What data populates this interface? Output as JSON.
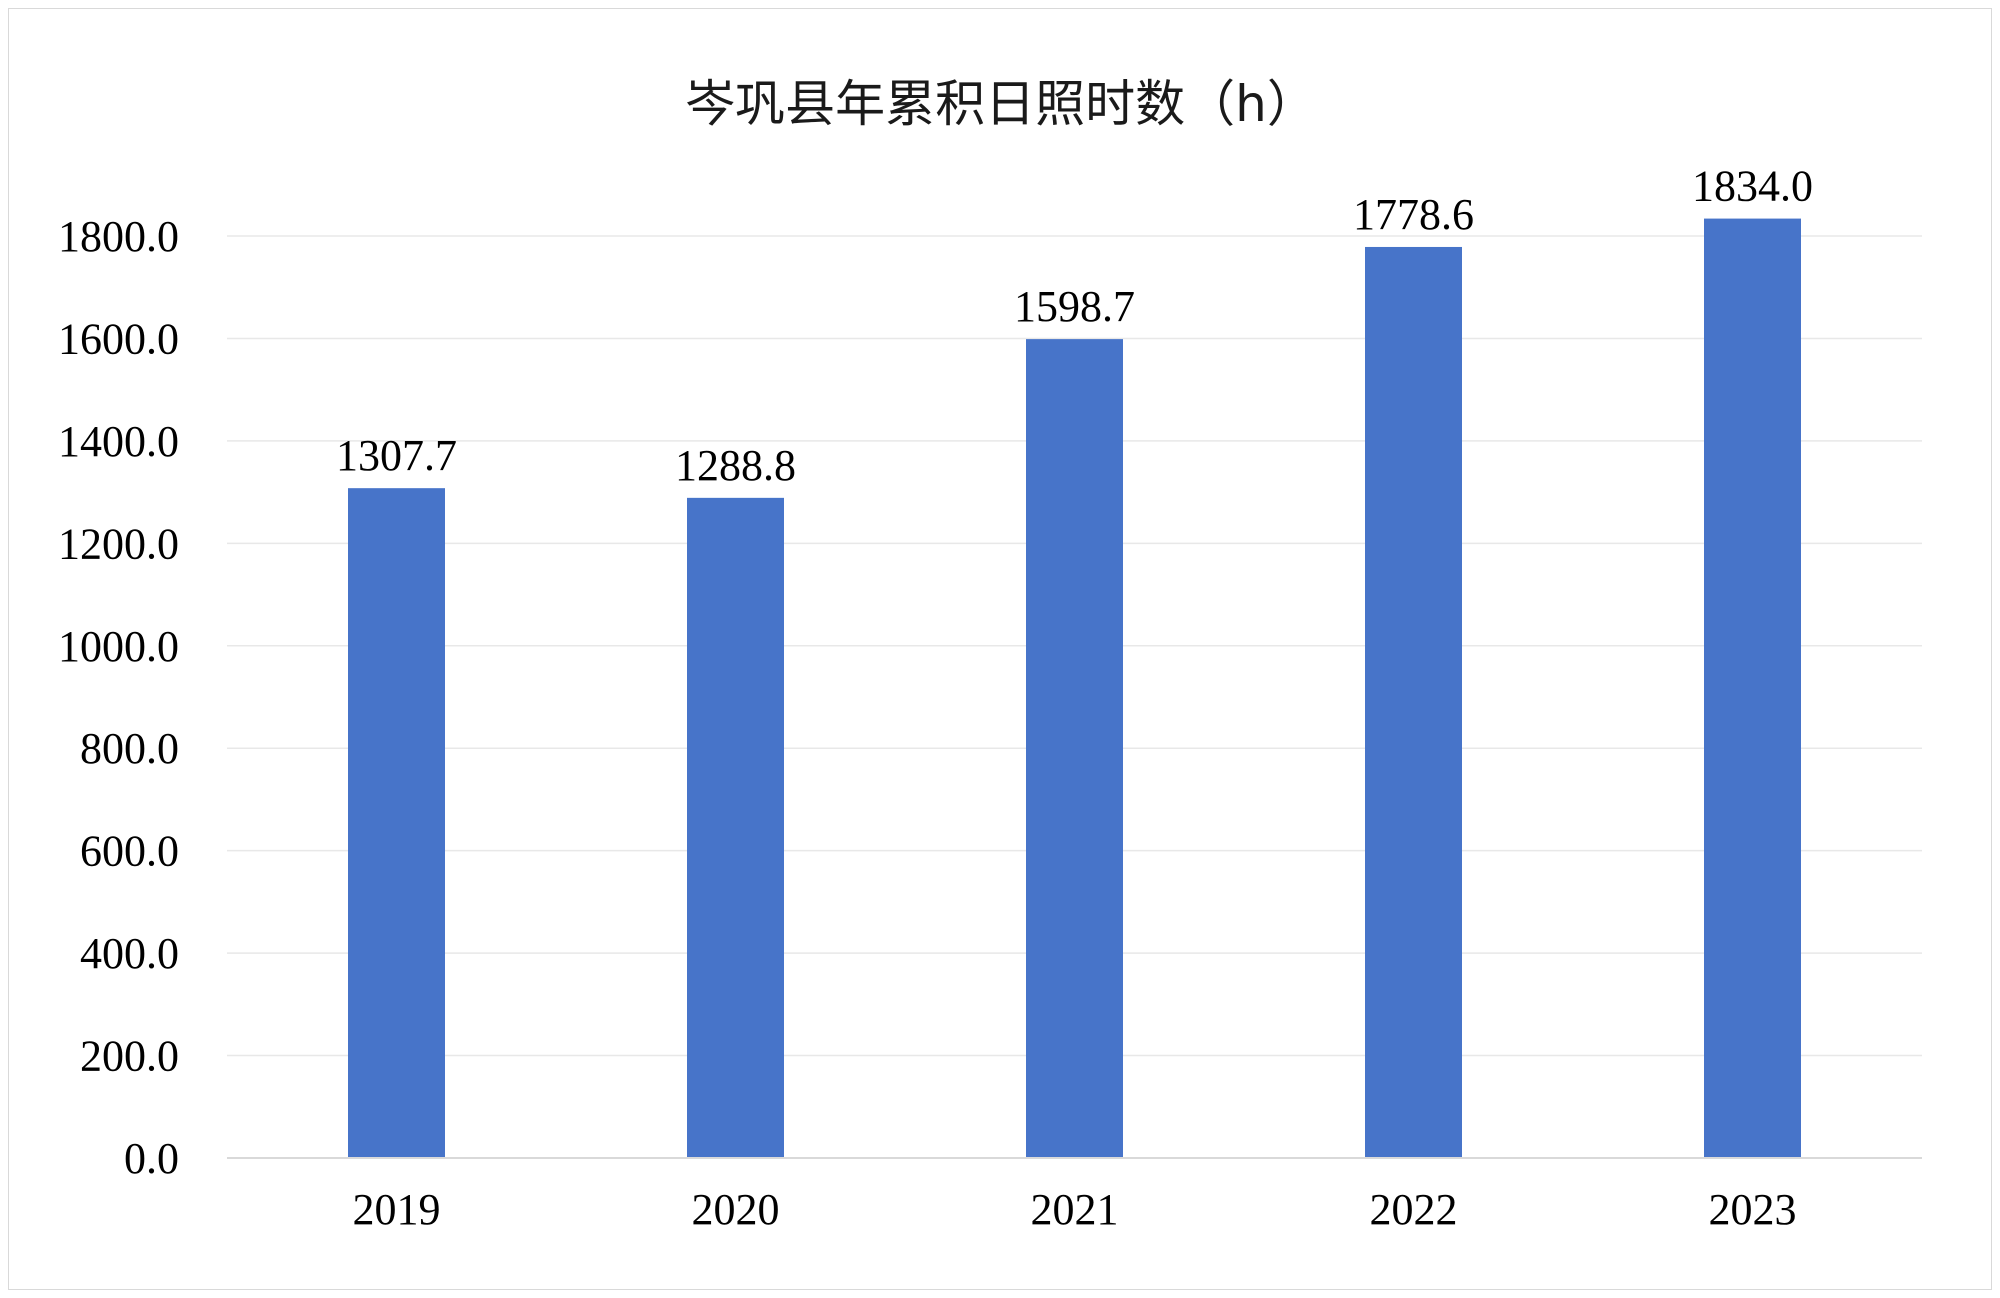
{
  "chart_data": {
    "type": "bar",
    "title": "岑巩县年累积日照时数（h）",
    "categories": [
      "2019",
      "2020",
      "2021",
      "2022",
      "2023"
    ],
    "values": [
      1307.7,
      1288.8,
      1598.7,
      1778.6,
      1834.0
    ],
    "value_labels": [
      "1307.7",
      "1288.8",
      "1598.7",
      "1778.6",
      "1834.0"
    ],
    "yticks": [
      "0.0",
      "200.0",
      "400.0",
      "600.0",
      "800.0",
      "1000.0",
      "1200.0",
      "1400.0",
      "1600.0",
      "1800.0"
    ],
    "ylim": [
      0,
      1800
    ],
    "grid": true,
    "legend": "none",
    "bar_color": "#4774C9"
  }
}
